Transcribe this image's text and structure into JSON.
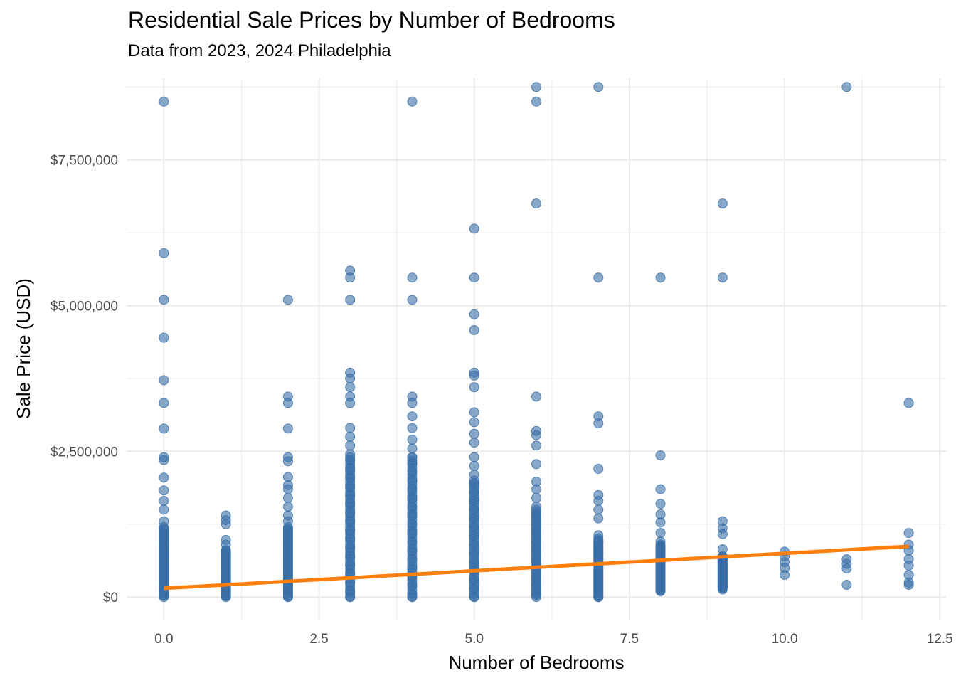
{
  "chart_data": {
    "type": "scatter",
    "title": "Residential Sale Prices by Number of Bedrooms",
    "subtitle": "Data from 2023, 2024 Philadelphia",
    "xlabel": "Number of Bedrooms",
    "ylabel": "Sale Price (USD)",
    "xlim": [
      -0.6,
      12.6
    ],
    "ylim": [
      -400000,
      8900000
    ],
    "x_ticks": [
      0,
      2.5,
      5,
      7.5,
      10,
      12.5
    ],
    "x_tick_labels": [
      "0.0",
      "2.5",
      "5.0",
      "7.5",
      "10.0",
      "12.5"
    ],
    "y_ticks": [
      0,
      2500000,
      5000000,
      7500000
    ],
    "y_tick_labels": [
      "$0",
      "$2,500,000",
      "$5,000,000",
      "$7,500,000"
    ],
    "grid": true,
    "legend": "none",
    "colors": {
      "points": "#3a6fa8",
      "trend": "#ff7f0e",
      "grid": "#ebebeb"
    },
    "point_alpha": 0.6,
    "trend_line": {
      "x": [
        0,
        12
      ],
      "y": [
        150000,
        870000
      ]
    },
    "series": [
      {
        "x": 0,
        "y": [
          8500000,
          5900000,
          5100000,
          4450000,
          3720000,
          3330000,
          2890000,
          2400000,
          2350000,
          2050000,
          1830000,
          1650000,
          1500000,
          1300000,
          1150000,
          1000000,
          900000,
          800000,
          700000,
          600000,
          500000,
          400000,
          300000,
          200000,
          100000,
          30000
        ],
        "range": [
          0,
          1200000
        ]
      },
      {
        "x": 1,
        "y": [
          1400000,
          1320000,
          1250000,
          980000,
          900000,
          800000,
          700000,
          600000,
          500000,
          400000,
          300000,
          200000,
          100000,
          20000
        ],
        "range": [
          0,
          800000
        ]
      },
      {
        "x": 2,
        "y": [
          5100000,
          3440000,
          3330000,
          2890000,
          2400000,
          2330000,
          2060000,
          1920000,
          1850000,
          1700000,
          1550000,
          1400000,
          1300000,
          1150000,
          1000000,
          900000,
          800000,
          700000,
          600000,
          500000,
          400000,
          300000,
          200000,
          100000,
          0
        ],
        "range": [
          0,
          1200000
        ]
      },
      {
        "x": 3,
        "y": [
          5600000,
          5480000,
          5100000,
          3850000,
          3750000,
          3600000,
          3440000,
          3330000,
          2900000,
          2750000,
          2600000,
          2450000,
          2350000,
          2200000,
          2050000,
          1900000,
          1750000,
          1600000,
          1450000,
          1300000,
          1150000,
          1000000,
          850000,
          700000,
          550000,
          400000,
          250000,
          100000,
          0
        ],
        "range": [
          0,
          2400000
        ]
      },
      {
        "x": 4,
        "y": [
          8500000,
          5480000,
          5100000,
          3440000,
          3330000,
          3100000,
          2900000,
          2700000,
          2550000,
          2400000,
          2300000,
          2150000,
          2000000,
          1850000,
          1700000,
          1550000,
          1400000,
          1250000,
          1100000,
          950000,
          800000,
          650000,
          500000,
          350000,
          200000,
          50000,
          0
        ],
        "range": [
          0,
          2400000
        ]
      },
      {
        "x": 5,
        "y": [
          6320000,
          5480000,
          4850000,
          4580000,
          3850000,
          3800000,
          3600000,
          3170000,
          3000000,
          2800000,
          2650000,
          2400000,
          2250000,
          2100000,
          1950000,
          1800000,
          1650000,
          1500000,
          1350000,
          1200000,
          1050000,
          900000,
          750000,
          600000,
          450000,
          300000,
          150000,
          0
        ],
        "range": [
          0,
          2000000
        ]
      },
      {
        "x": 6,
        "y": [
          8750000,
          8500000,
          6750000,
          3440000,
          2850000,
          2780000,
          2600000,
          2280000,
          1980000,
          1850000,
          1700000,
          1550000,
          1400000,
          1250000,
          1100000,
          950000,
          800000,
          650000,
          500000,
          350000,
          200000,
          50000
        ],
        "range": [
          0,
          1500000
        ]
      },
      {
        "x": 7,
        "y": [
          8750000,
          5480000,
          3100000,
          2980000,
          2200000,
          1750000,
          1650000,
          1500000,
          1350000,
          1060000,
          950000,
          850000,
          750000,
          650000,
          550000,
          450000,
          350000,
          250000,
          150000,
          0
        ],
        "range": [
          0,
          1000000
        ]
      },
      {
        "x": 8,
        "y": [
          5480000,
          2430000,
          1850000,
          1600000,
          1420000,
          1280000,
          1100000,
          950000,
          850000,
          750000,
          650000,
          550000,
          450000,
          350000,
          250000,
          120000
        ],
        "range": [
          100000,
          900000
        ]
      },
      {
        "x": 9,
        "y": [
          6750000,
          5480000,
          1300000,
          1180000,
          1080000,
          820000,
          650000,
          560000,
          470000,
          380000,
          290000,
          200000,
          130000
        ],
        "range": [
          150000,
          700000
        ]
      },
      {
        "x": 10,
        "y": [
          780000,
          700000,
          600000,
          500000,
          380000
        ]
      },
      {
        "x": 11,
        "y": [
          8750000,
          650000,
          570000,
          490000,
          210000
        ]
      },
      {
        "x": 12,
        "y": [
          3330000,
          1100000,
          900000,
          800000,
          650000,
          540000,
          380000,
          250000,
          210000
        ]
      }
    ]
  }
}
